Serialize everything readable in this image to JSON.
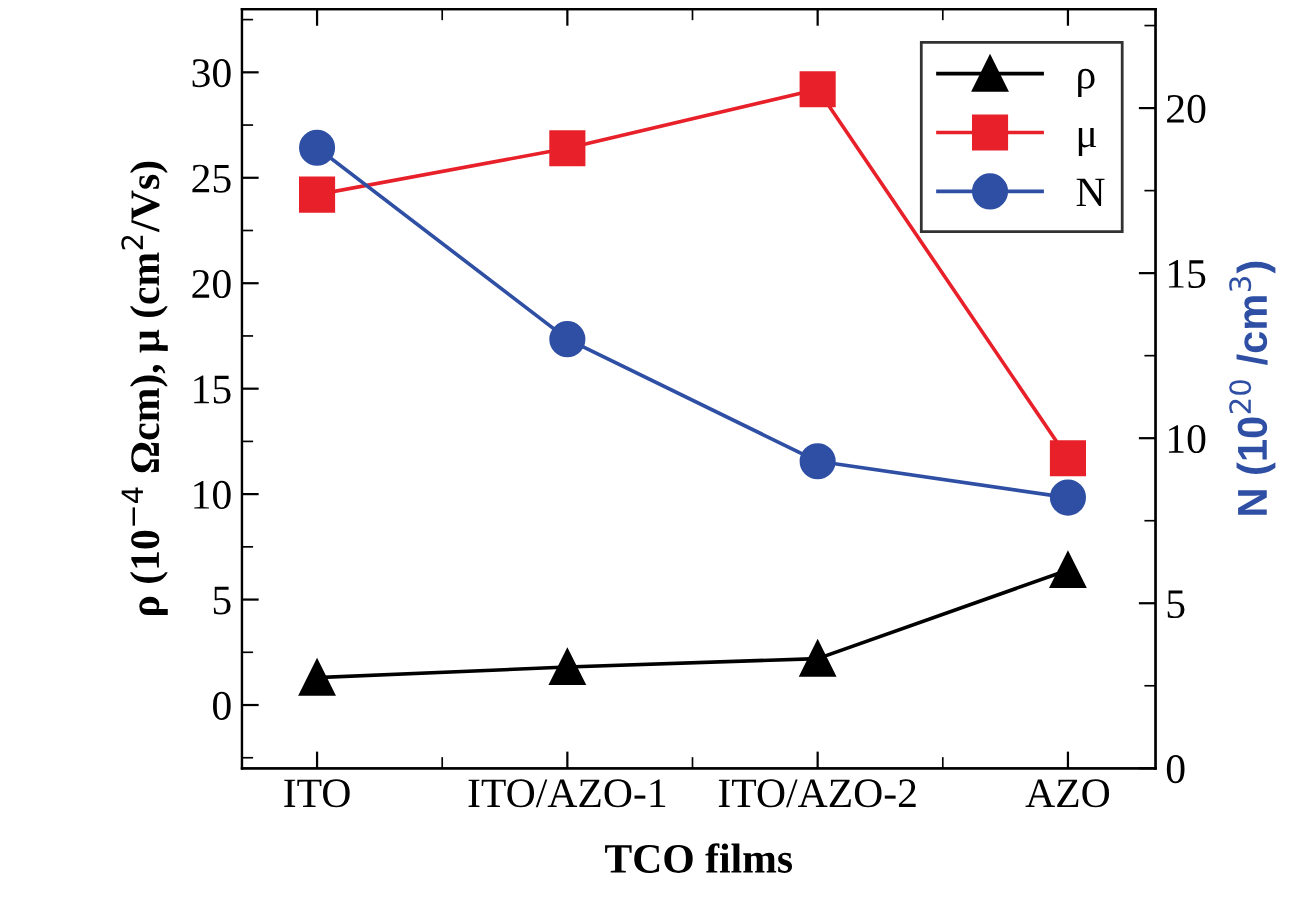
{
  "chart_data": {
    "type": "line",
    "xlabel": "TCO films",
    "ylabel": "ρ (10$^{−4}$ Ωcm), μ (cm$^{2}$/Vs)",
    "y2label": "N (10$^{20}$ /cm$^{3}$)",
    "categories": [
      "ITO",
      "ITO/AZO-1",
      "ITO/AZO-2",
      "AZO"
    ],
    "series": [
      {
        "name": "ρ",
        "color": "#000000",
        "marker": "triangle",
        "values": [
          1.3,
          1.8,
          2.2,
          6.4
        ]
      },
      {
        "name": "μ",
        "color": "#e8202a",
        "marker": "square",
        "values": [
          24.2,
          26.4,
          29.2,
          11.7
        ]
      },
      {
        "name": "N",
        "color": "#2e4fa3",
        "marker": "circle",
        "axis": "y2",
        "values": [
          18.8,
          13.0,
          9.3,
          8.2
        ]
      }
    ],
    "ylim": [
      -3,
      33
    ],
    "yticks": [
      0,
      5,
      10,
      15,
      20,
      25,
      30
    ],
    "y2lim": [
      0,
      23
    ],
    "y2ticks": [
      0,
      5,
      10,
      15,
      20
    ],
    "legend": "top right",
    "grid": false
  }
}
